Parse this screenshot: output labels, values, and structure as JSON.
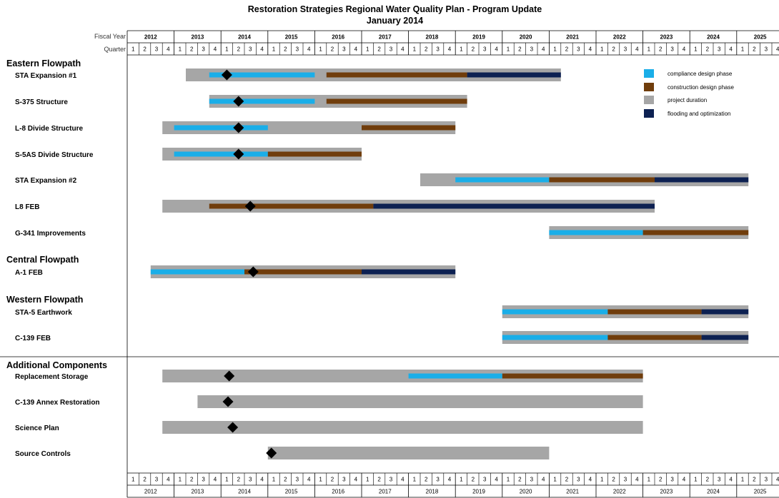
{
  "chart_data": {
    "type": "gantt",
    "title": "Restoration Strategies Regional Water Quality Plan - Program Update",
    "subtitle": "January 2014",
    "header_labels": {
      "fiscal_year": "Fiscal Year",
      "quarter": "Quarter"
    },
    "years": [
      "2012",
      "2013",
      "2014",
      "2015",
      "2016",
      "2017",
      "2018",
      "2019",
      "2020",
      "2021",
      "2022",
      "2023",
      "2024",
      "2025"
    ],
    "quarters": [
      "1",
      "2",
      "3",
      "4"
    ],
    "axis_start": "FY2012 Q1",
    "phase_colors": {
      "compliance": "#1aaee8",
      "construction": "#703d0c",
      "duration": "#a6a6a6",
      "flooding": "#0d2152"
    },
    "legend": [
      {
        "key": "compliance",
        "label": "compliance design phase"
      },
      {
        "key": "construction",
        "label": "construction design phase"
      },
      {
        "key": "duration",
        "label": "project duration"
      },
      {
        "key": "flooding",
        "label": "flooding and optimization"
      }
    ],
    "groups": [
      {
        "name": "Eastern Flowpath",
        "projects": [
          {
            "name": "STA Expansion #1",
            "duration": [
              5,
              37
            ],
            "milestone": 8.5,
            "phases": [
              {
                "type": "compliance",
                "start": 7,
                "end": 16
              },
              {
                "type": "construction",
                "start": 17,
                "end": 29
              },
              {
                "type": "flooding",
                "start": 29,
                "end": 37
              }
            ]
          },
          {
            "name": "S-375 Structure",
            "duration": [
              7,
              29
            ],
            "milestone": 9.5,
            "phases": [
              {
                "type": "compliance",
                "start": 7,
                "end": 16
              },
              {
                "type": "construction",
                "start": 17,
                "end": 29
              }
            ]
          },
          {
            "name": "L-8 Divide Structure",
            "duration": [
              3,
              28
            ],
            "milestone": 9.5,
            "phases": [
              {
                "type": "compliance",
                "start": 4,
                "end": 12
              },
              {
                "type": "construction",
                "start": 20,
                "end": 28
              }
            ]
          },
          {
            "name": "S-5AS Divide Structure",
            "duration": [
              3,
              20
            ],
            "milestone": 9.5,
            "phases": [
              {
                "type": "compliance",
                "start": 4,
                "end": 12
              },
              {
                "type": "construction",
                "start": 12,
                "end": 20
              }
            ]
          },
          {
            "name": "STA Expansion #2",
            "duration": [
              25,
              53
            ],
            "milestone": null,
            "phases": [
              {
                "type": "compliance",
                "start": 28,
                "end": 36
              },
              {
                "type": "construction",
                "start": 36,
                "end": 45
              },
              {
                "type": "flooding",
                "start": 45,
                "end": 53
              }
            ]
          },
          {
            "name": "L8 FEB",
            "duration": [
              3,
              45
            ],
            "milestone": 10.5,
            "phases": [
              {
                "type": "construction",
                "start": 7,
                "end": 21
              },
              {
                "type": "flooding",
                "start": 21,
                "end": 45
              }
            ]
          },
          {
            "name": "G-341 Improvements",
            "duration": [
              36,
              53
            ],
            "milestone": null,
            "phases": [
              {
                "type": "compliance",
                "start": 36,
                "end": 44
              },
              {
                "type": "construction",
                "start": 44,
                "end": 53
              }
            ]
          }
        ]
      },
      {
        "name": "Central Flowpath",
        "projects": [
          {
            "name": "A-1 FEB",
            "duration": [
              2,
              28
            ],
            "milestone": 10.75,
            "phases": [
              {
                "type": "compliance",
                "start": 2,
                "end": 10
              },
              {
                "type": "construction",
                "start": 10,
                "end": 20
              },
              {
                "type": "flooding",
                "start": 20,
                "end": 28
              }
            ]
          }
        ]
      },
      {
        "name": "Western Flowpath",
        "projects": [
          {
            "name": "STA-5 Earthwork",
            "duration": [
              32,
              53
            ],
            "milestone": null,
            "phases": [
              {
                "type": "compliance",
                "start": 32,
                "end": 41
              },
              {
                "type": "construction",
                "start": 41,
                "end": 49
              },
              {
                "type": "flooding",
                "start": 49,
                "end": 53
              }
            ]
          },
          {
            "name": "C-139 FEB",
            "duration": [
              32,
              53
            ],
            "milestone": null,
            "phases": [
              {
                "type": "compliance",
                "start": 32,
                "end": 41
              },
              {
                "type": "construction",
                "start": 41,
                "end": 49
              },
              {
                "type": "flooding",
                "start": 49,
                "end": 53
              }
            ]
          }
        ]
      },
      {
        "name": "Additional Components",
        "projects": [
          {
            "name": "Replacement Storage",
            "duration": [
              3,
              44
            ],
            "milestone": 8.7,
            "phases": [
              {
                "type": "compliance",
                "start": 24,
                "end": 32
              },
              {
                "type": "construction",
                "start": 32,
                "end": 44
              }
            ]
          },
          {
            "name": "C-139 Annex Restoration",
            "duration": [
              6,
              44
            ],
            "milestone": 8.6,
            "phases": []
          },
          {
            "name": "Science Plan",
            "duration": [
              3,
              44
            ],
            "milestone": 9.0,
            "phases": []
          },
          {
            "name": "Source Controls",
            "duration": [
              12,
              36
            ],
            "milestone": 12.3,
            "phases": []
          }
        ]
      }
    ]
  }
}
